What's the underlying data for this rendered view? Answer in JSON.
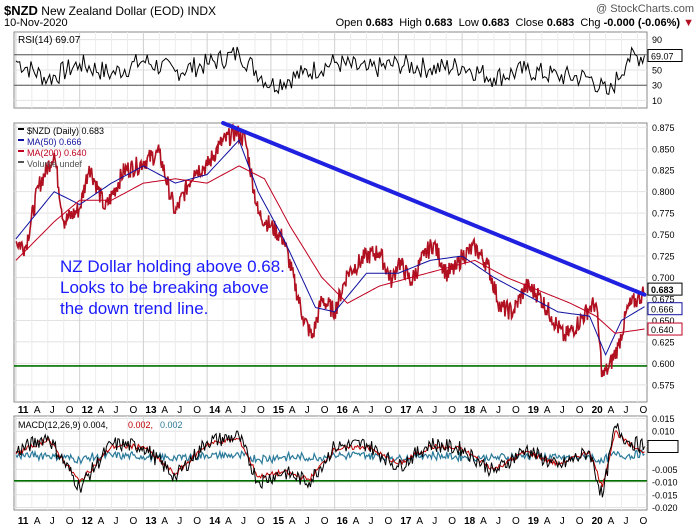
{
  "header": {
    "symbol": "$NZD",
    "name": "New Zealand Dollar (EOD)",
    "exchange": "INDX",
    "date": "10-Nov-2020",
    "watermark": "@ StockCharts.com",
    "open_label": "Open",
    "open": "0.683",
    "high_label": "High",
    "high": "0.683",
    "low_label": "Low",
    "low": "0.683",
    "close_label": "Close",
    "close": "0.683",
    "chg_label": "Chg",
    "chg": "-0.000 (-0.06%)"
  },
  "annotation": "NZ Dollar holding above 0.68. Looks to be breaking above the down trend line.",
  "colors": {
    "price": "#b01020",
    "ma50": "#1010a0",
    "ma200": "#c00020",
    "trendline": "#2020e0",
    "support": "#007000",
    "macd": "#000000",
    "signal": "#c00000",
    "hist": "#2a7a9a",
    "rsi": "#000000"
  },
  "chart_data": [
    {
      "type": "line",
      "panel": "rsi",
      "title": "RSI(14) 69.07",
      "current_value": "69.07",
      "ylim": [
        0,
        100
      ],
      "yticks": [
        "90",
        "70",
        "50",
        "30",
        "10"
      ],
      "grid": true,
      "bands": [
        30,
        70
      ],
      "series": [
        {
          "name": "RSI(14)",
          "x": [
            2011.0,
            2011.5,
            2012.0,
            2012.5,
            2013.0,
            2013.5,
            2014.0,
            2014.5,
            2015.0,
            2015.5,
            2016.0,
            2016.5,
            2017.0,
            2017.5,
            2018.0,
            2018.5,
            2019.0,
            2019.5,
            2020.0,
            2020.3,
            2020.6,
            2020.86
          ],
          "values": [
            62,
            38,
            58,
            45,
            62,
            48,
            58,
            72,
            30,
            45,
            60,
            50,
            58,
            52,
            55,
            40,
            50,
            42,
            40,
            18,
            65,
            69.07
          ]
        }
      ]
    },
    {
      "type": "line",
      "panel": "price",
      "title": "$NZD (Daily) 0.683",
      "legend": [
        "$NZD (Daily) 0.683",
        "MA(50) 0.666",
        "MA(200) 0.640",
        "Volume undef"
      ],
      "ylim": [
        0.555,
        0.88
      ],
      "yticks": [
        "0.875",
        "0.850",
        "0.825",
        "0.800",
        "0.775",
        "0.750",
        "0.725",
        "0.700",
        "0.675",
        "0.650",
        "0.625",
        "0.600",
        "0.575"
      ],
      "last_values": [
        "0.683",
        "0.666",
        "0.640"
      ],
      "grid": true,
      "series": [
        {
          "name": "$NZD (Daily)",
          "x": [
            2011.0,
            2011.15,
            2011.35,
            2011.6,
            2011.75,
            2012.0,
            2012.15,
            2012.4,
            2012.7,
            2012.9,
            2013.0,
            2013.25,
            2013.5,
            2013.8,
            2014.0,
            2014.2,
            2014.45,
            2014.6,
            2014.8,
            2015.0,
            2015.2,
            2015.5,
            2015.65,
            2015.8,
            2016.0,
            2016.2,
            2016.5,
            2016.7,
            2016.9,
            2017.0,
            2017.2,
            2017.4,
            2017.55,
            2017.75,
            2017.9,
            2018.0,
            2018.2,
            2018.4,
            2018.6,
            2018.8,
            2019.0,
            2019.2,
            2019.4,
            2019.6,
            2019.8,
            2020.0,
            2020.1,
            2020.2,
            2020.3,
            2020.45,
            2020.6,
            2020.75,
            2020.86
          ],
          "values": [
            0.742,
            0.735,
            0.805,
            0.845,
            0.765,
            0.78,
            0.83,
            0.78,
            0.825,
            0.83,
            0.835,
            0.845,
            0.775,
            0.825,
            0.83,
            0.855,
            0.87,
            0.86,
            0.775,
            0.76,
            0.745,
            0.655,
            0.63,
            0.675,
            0.66,
            0.705,
            0.725,
            0.73,
            0.695,
            0.72,
            0.695,
            0.725,
            0.74,
            0.705,
            0.71,
            0.725,
            0.735,
            0.715,
            0.665,
            0.66,
            0.69,
            0.68,
            0.655,
            0.63,
            0.645,
            0.665,
            0.67,
            0.585,
            0.595,
            0.62,
            0.665,
            0.675,
            0.683
          ]
        },
        {
          "name": "MA(50)",
          "x": [
            2011.0,
            2011.6,
            2012.0,
            2012.5,
            2013.0,
            2013.5,
            2014.0,
            2014.5,
            2014.8,
            2015.2,
            2015.7,
            2016.0,
            2016.5,
            2017.0,
            2017.5,
            2018.0,
            2018.5,
            2019.0,
            2019.5,
            2020.0,
            2020.25,
            2020.5,
            2020.86
          ],
          "values": [
            0.745,
            0.8,
            0.785,
            0.81,
            0.83,
            0.81,
            0.82,
            0.86,
            0.8,
            0.745,
            0.665,
            0.66,
            0.705,
            0.705,
            0.72,
            0.725,
            0.7,
            0.68,
            0.66,
            0.655,
            0.61,
            0.65,
            0.666
          ]
        },
        {
          "name": "MA(200)",
          "x": [
            2011.0,
            2011.6,
            2012.0,
            2012.5,
            2013.0,
            2013.5,
            2014.0,
            2014.5,
            2014.9,
            2015.3,
            2015.8,
            2016.2,
            2016.7,
            2017.2,
            2017.7,
            2018.2,
            2018.7,
            2019.2,
            2019.7,
            2020.1,
            2020.4,
            2020.86
          ],
          "values": [
            0.72,
            0.765,
            0.79,
            0.79,
            0.81,
            0.815,
            0.81,
            0.83,
            0.815,
            0.76,
            0.7,
            0.67,
            0.69,
            0.7,
            0.71,
            0.72,
            0.7,
            0.685,
            0.67,
            0.655,
            0.635,
            0.64
          ]
        }
      ],
      "trendline": {
        "x": [
          2014.25,
          2020.86
        ],
        "values": [
          0.88,
          0.68
        ]
      },
      "support": 0.597
    },
    {
      "type": "line",
      "panel": "macd",
      "title": "MACD(12,26,9) 0.004, 0.002, 0.002",
      "legend": [
        "MACD(12,26,9) 0.004,",
        "0.002,",
        "0.002"
      ],
      "ylim": [
        -0.021,
        0.016
      ],
      "yticks": [
        "0.015",
        "0.010",
        "0.005",
        "0.004",
        "-0.005",
        "-0.010",
        "-0.015",
        "-0.020"
      ],
      "support": -0.0095,
      "grid": true,
      "series": [
        {
          "name": "MACD",
          "x": [
            2011.0,
            2011.5,
            2012.0,
            2012.5,
            2013.0,
            2013.5,
            2014.0,
            2014.5,
            2014.8,
            2015.2,
            2015.6,
            2016.0,
            2016.5,
            2017.0,
            2017.5,
            2018.0,
            2018.5,
            2019.0,
            2019.5,
            2020.0,
            2020.2,
            2020.4,
            2020.6,
            2020.86
          ],
          "values": [
            0.002,
            0.008,
            -0.012,
            0.005,
            0.004,
            -0.008,
            0.006,
            0.008,
            -0.01,
            -0.006,
            -0.01,
            0.004,
            0.005,
            -0.004,
            0.005,
            0.003,
            -0.006,
            0.003,
            -0.004,
            0.002,
            -0.016,
            0.012,
            0.006,
            0.004
          ]
        },
        {
          "name": "Signal",
          "x": [
            2011.0,
            2011.5,
            2012.0,
            2012.5,
            2013.0,
            2013.5,
            2014.0,
            2014.5,
            2014.8,
            2015.2,
            2015.6,
            2016.0,
            2016.5,
            2017.0,
            2017.5,
            2018.0,
            2018.5,
            2019.0,
            2019.5,
            2020.0,
            2020.2,
            2020.4,
            2020.6,
            2020.86
          ],
          "values": [
            0.001,
            0.007,
            -0.01,
            0.004,
            0.004,
            -0.007,
            0.005,
            0.007,
            -0.008,
            -0.006,
            -0.009,
            0.003,
            0.004,
            -0.003,
            0.004,
            0.003,
            -0.005,
            0.002,
            -0.003,
            0.002,
            -0.012,
            0.01,
            0.005,
            0.002
          ]
        }
      ]
    }
  ],
  "x_axis": {
    "labels": [
      {
        "x": 2011.0,
        "t": "11",
        "bold": true
      },
      {
        "x": 2011.25,
        "t": "A"
      },
      {
        "x": 2011.5,
        "t": "J"
      },
      {
        "x": 2011.75,
        "t": "O"
      },
      {
        "x": 2012.0,
        "t": "12",
        "bold": true
      },
      {
        "x": 2012.25,
        "t": "A"
      },
      {
        "x": 2012.5,
        "t": "J"
      },
      {
        "x": 2012.75,
        "t": "O"
      },
      {
        "x": 2013.0,
        "t": "13",
        "bold": true
      },
      {
        "x": 2013.25,
        "t": "A"
      },
      {
        "x": 2013.5,
        "t": "J"
      },
      {
        "x": 2013.75,
        "t": "O"
      },
      {
        "x": 2014.0,
        "t": "14",
        "bold": true
      },
      {
        "x": 2014.25,
        "t": "A"
      },
      {
        "x": 2014.5,
        "t": "J"
      },
      {
        "x": 2014.75,
        "t": "O"
      },
      {
        "x": 2015.0,
        "t": "15",
        "bold": true
      },
      {
        "x": 2015.25,
        "t": "A"
      },
      {
        "x": 2015.5,
        "t": "J"
      },
      {
        "x": 2015.75,
        "t": "O"
      },
      {
        "x": 2016.0,
        "t": "16",
        "bold": true
      },
      {
        "x": 2016.25,
        "t": "A"
      },
      {
        "x": 2016.5,
        "t": "J"
      },
      {
        "x": 2016.75,
        "t": "O"
      },
      {
        "x": 2017.0,
        "t": "17",
        "bold": true
      },
      {
        "x": 2017.25,
        "t": "A"
      },
      {
        "x": 2017.5,
        "t": "J"
      },
      {
        "x": 2017.75,
        "t": "O"
      },
      {
        "x": 2018.0,
        "t": "18",
        "bold": true
      },
      {
        "x": 2018.25,
        "t": "A"
      },
      {
        "x": 2018.5,
        "t": "J"
      },
      {
        "x": 2018.75,
        "t": "O"
      },
      {
        "x": 2019.0,
        "t": "19",
        "bold": true
      },
      {
        "x": 2019.25,
        "t": "A"
      },
      {
        "x": 2019.5,
        "t": "J"
      },
      {
        "x": 2019.75,
        "t": "O"
      },
      {
        "x": 2020.0,
        "t": "20",
        "bold": true
      },
      {
        "x": 2020.25,
        "t": "A"
      },
      {
        "x": 2020.5,
        "t": "J"
      },
      {
        "x": 2020.75,
        "t": "O"
      }
    ],
    "xlim": [
      2010.97,
      2020.9
    ]
  }
}
